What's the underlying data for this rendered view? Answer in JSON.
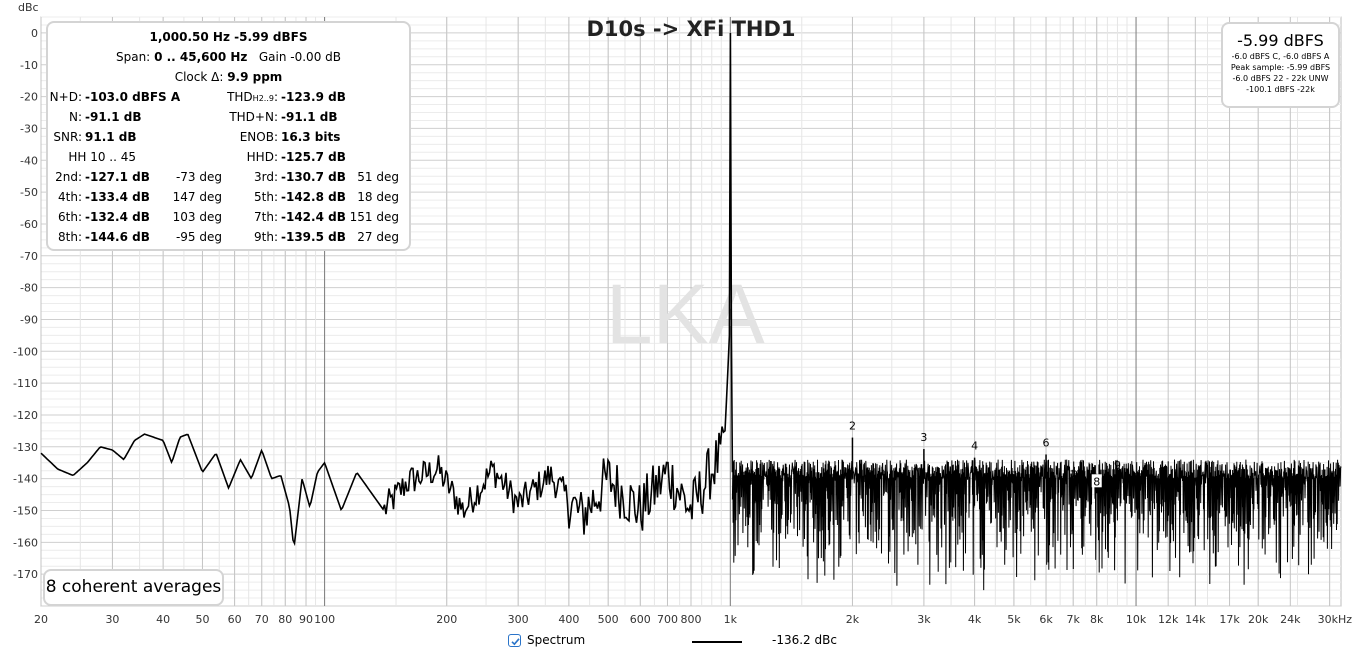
{
  "chart_data": {
    "type": "line",
    "title": "D10s -> XFi THD1",
    "ylabel": "dBc",
    "xscale": "log",
    "xlim": [
      20,
      32000
    ],
    "ylim": [
      -180,
      5
    ],
    "grid": true,
    "watermark": "LKA",
    "y_ticks": [
      "0",
      "-10",
      "-20",
      "-30",
      "-40",
      "-50",
      "-60",
      "-70",
      "-80",
      "-90",
      "-100",
      "-110",
      "-120",
      "-130",
      "-140",
      "-150",
      "-160",
      "-170"
    ],
    "x_ticks": [
      {
        "v": 20,
        "label": "20"
      },
      {
        "v": 30,
        "label": "30"
      },
      {
        "v": 40,
        "label": "40"
      },
      {
        "v": 50,
        "label": "50"
      },
      {
        "v": 60,
        "label": "60"
      },
      {
        "v": 70,
        "label": "70"
      },
      {
        "v": 80,
        "label": "80"
      },
      {
        "v": 90,
        "label": "90"
      },
      {
        "v": 100,
        "label": "100"
      },
      {
        "v": 200,
        "label": "200"
      },
      {
        "v": 300,
        "label": "300"
      },
      {
        "v": 400,
        "label": "400"
      },
      {
        "v": 500,
        "label": "500"
      },
      {
        "v": 600,
        "label": "600"
      },
      {
        "v": 700,
        "label": "700"
      },
      {
        "v": 800,
        "label": "800"
      },
      {
        "v": 1000,
        "label": "1k"
      },
      {
        "v": 2000,
        "label": "2k"
      },
      {
        "v": 3000,
        "label": "3k"
      },
      {
        "v": 4000,
        "label": "4k"
      },
      {
        "v": 5000,
        "label": "5k"
      },
      {
        "v": 6000,
        "label": "6k"
      },
      {
        "v": 7000,
        "label": "7k"
      },
      {
        "v": 8000,
        "label": "8k"
      },
      {
        "v": 10000,
        "label": "10k"
      },
      {
        "v": 12000,
        "label": "12k"
      },
      {
        "v": 14000,
        "label": "14k"
      },
      {
        "v": 17000,
        "label": "17k"
      },
      {
        "v": 20000,
        "label": "20k"
      },
      {
        "v": 24000,
        "label": "24k"
      },
      {
        "v": 30000,
        "label": "30kHz"
      }
    ],
    "series": [
      {
        "name": "Spectrum",
        "color": "#000000",
        "fundamental": {
          "x": 1000.5,
          "y": -0.01
        },
        "envelope": [
          [
            20,
            -132
          ],
          [
            22,
            -137
          ],
          [
            24,
            -139
          ],
          [
            26,
            -135
          ],
          [
            28,
            -130
          ],
          [
            30,
            -131
          ],
          [
            32,
            -134
          ],
          [
            34,
            -128
          ],
          [
            36,
            -126
          ],
          [
            40,
            -128
          ],
          [
            42,
            -135
          ],
          [
            44,
            -127
          ],
          [
            46,
            -126
          ],
          [
            50,
            -138
          ],
          [
            54,
            -132
          ],
          [
            58,
            -143
          ],
          [
            62,
            -134
          ],
          [
            66,
            -140
          ],
          [
            70,
            -131
          ],
          [
            74,
            -140
          ],
          [
            78,
            -139
          ],
          [
            82,
            -149
          ],
          [
            84,
            -162
          ],
          [
            88,
            -140
          ],
          [
            92,
            -149
          ],
          [
            96,
            -138
          ],
          [
            100,
            -135
          ],
          [
            110,
            -150
          ],
          [
            120,
            -138
          ],
          [
            140,
            -150
          ],
          [
            160,
            -141
          ],
          [
            190,
            -137
          ],
          [
            220,
            -150
          ],
          [
            260,
            -137
          ],
          [
            300,
            -148
          ],
          [
            360,
            -139
          ],
          [
            430,
            -152
          ],
          [
            500,
            -140
          ],
          [
            600,
            -150
          ],
          [
            700,
            -138
          ],
          [
            800,
            -150
          ],
          [
            900,
            -137
          ],
          [
            960,
            -132
          ],
          [
            990,
            -110
          ]
        ],
        "harmonics": [
          {
            "order": "2",
            "f": 2000,
            "y": -127.1
          },
          {
            "order": "3",
            "f": 3000,
            "y": -130.7
          },
          {
            "order": "4",
            "f": 4000,
            "y": -133.4
          },
          {
            "order": "5",
            "f": 5000,
            "y": -142.8
          },
          {
            "order": "6",
            "f": 6000,
            "y": -132.4
          },
          {
            "order": "7",
            "f": 7000,
            "y": -142.4
          },
          {
            "order": "8",
            "f": 8000,
            "y": -144.6
          },
          {
            "order": "9",
            "f": 9000,
            "y": -139.5
          }
        ]
      }
    ]
  },
  "stats": {
    "freq_line": "1,000.50 Hz  -5.99 dBFS",
    "span_label": "Span:",
    "span_value": "0 .. 45,600 Hz",
    "gain_label": "Gain",
    "gain_value": "-0.00 dB",
    "clock_label": "Clock Δ:",
    "clock_value": "9.9 ppm",
    "nd_label": "N+D:",
    "nd_value": "-103.0 dBFS A",
    "thd_label": "THD",
    "thd_sub": "H2..9",
    "thd_value": "-123.9 dB",
    "n_label": "N:",
    "n_value": "-91.1 dB",
    "thdn_label": "THD+N:",
    "thdn_value": "-91.1 dB",
    "snr_label": "SNR:",
    "snr_value": "91.1 dB",
    "enob_label": "ENOB:",
    "enob_value": "16.3 bits",
    "hh_label": "HH 10 .. 45",
    "hhd_label": "HHD:",
    "hhd_value": "-125.7 dB",
    "harmonics": [
      {
        "l_label": "2nd:",
        "l_value": "-127.1 dB",
        "l_deg": "-73 deg",
        "r_label": "3rd:",
        "r_value": "-130.7 dB",
        "r_deg": "51 deg"
      },
      {
        "l_label": "4th:",
        "l_value": "-133.4 dB",
        "l_deg": "147 deg",
        "r_label": "5th:",
        "r_value": "-142.8 dB",
        "r_deg": "18 deg"
      },
      {
        "l_label": "6th:",
        "l_value": "-132.4 dB",
        "l_deg": "103 deg",
        "r_label": "7th:",
        "r_value": "-142.4 dB",
        "r_deg": "151 deg"
      },
      {
        "l_label": "8th:",
        "l_value": "-144.6 dB",
        "l_deg": "-95 deg",
        "r_label": "9th:",
        "r_value": "-139.5 dB",
        "r_deg": "27 deg"
      }
    ]
  },
  "level": {
    "main": "-5.99 dBFS",
    "line1": "-6.0 dBFS C, -6.0 dBFS A",
    "line2": "Peak sample: -5.99 dBFS",
    "line3": "-6.0 dBFS 22 - 22k UNW",
    "line4": "-100.1 dBFS -22k"
  },
  "averages": "8 coherent averages",
  "legend": {
    "checkbox_checked": true,
    "series_label": "Spectrum",
    "value": "-136.2 dBc",
    "accent": "#2a74c9"
  }
}
